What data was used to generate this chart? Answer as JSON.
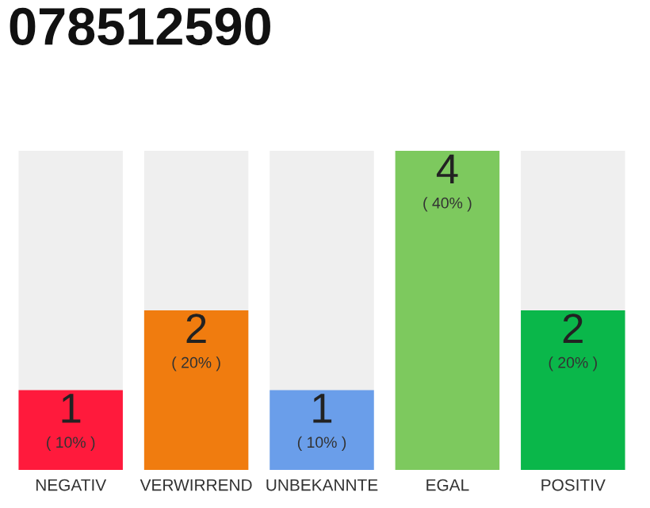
{
  "chart_data": {
    "type": "bar",
    "title": "078512590",
    "categories": [
      "NEGATIV",
      "VERWIRREND",
      "UNBEKANNTE",
      "EGAL",
      "POSITIV"
    ],
    "values": [
      1,
      2,
      1,
      4,
      2
    ],
    "colors": [
      "#ff1a3c",
      "#f07c0f",
      "#6a9eea",
      "#7dc95e",
      "#0ab74a"
    ],
    "data_labels": true,
    "annotations": [
      "( 10% )",
      "( 20% )",
      "( 10% )",
      "( 40% )",
      "( 20% )"
    ],
    "ylim": [
      0,
      4
    ],
    "tick_labels": "x",
    "grid": false,
    "legend": false
  }
}
